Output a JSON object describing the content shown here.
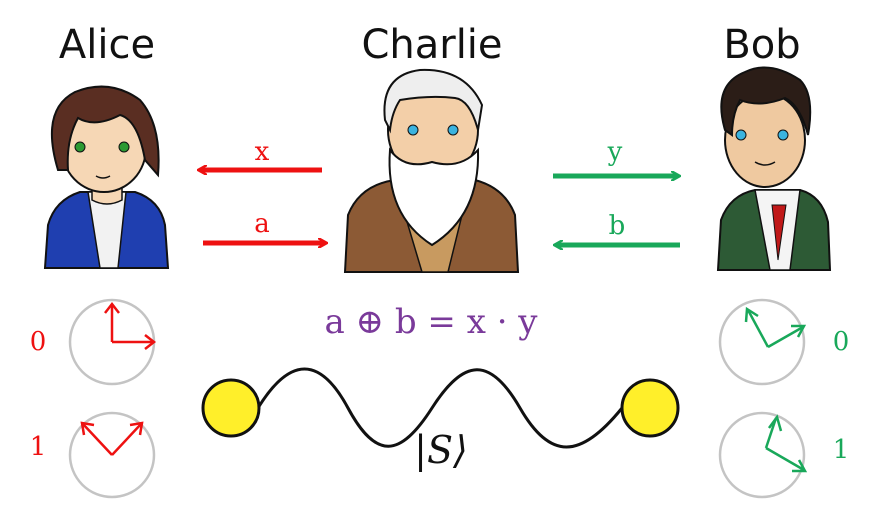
{
  "players": {
    "alice": {
      "name": "Alice"
    },
    "charlie": {
      "name": "Charlie"
    },
    "bob": {
      "name": "Bob"
    }
  },
  "messages": {
    "x": "x",
    "a": "a",
    "y": "y",
    "b": "b"
  },
  "equation": "a ⊕ b = x · y",
  "state_label": "|S⟩",
  "alice_bases": [
    "0",
    "1"
  ],
  "bob_bases": [
    "0",
    "1"
  ],
  "colors": {
    "alice": "#ee1111",
    "bob": "#19a85a",
    "equation": "#7a3a9a",
    "qubit": "#ffef2a",
    "circle": "#c4c4c4"
  }
}
